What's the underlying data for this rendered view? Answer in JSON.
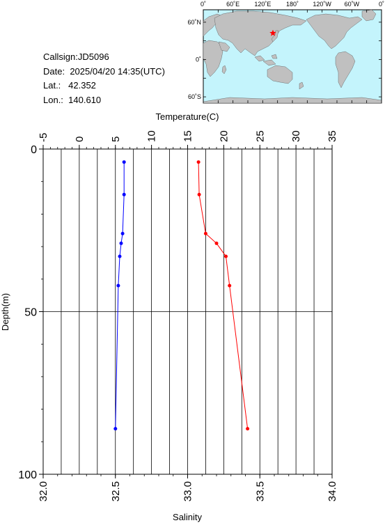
{
  "station": {
    "callsign_label": "Callsign:",
    "callsign": "JD5096",
    "date_label": "Date:",
    "date": "2025/04/20 14:35(UTC)",
    "lat_label": "Lat.:",
    "lat": "42.352",
    "lon_label": "Lon.:",
    "lon": "140.610"
  },
  "map": {
    "top_labels": [
      "0˚",
      "60˚E",
      "120˚E",
      "180˚",
      "120˚W",
      "60˚W",
      "0˚"
    ],
    "left_labels": [
      "60˚N",
      "0˚",
      "60˚S"
    ],
    "ocean_color": "#c4f4fc",
    "land_color": "#c0c0c0",
    "marker_color": "#ff0000",
    "marker": {
      "lon": 140.61,
      "lat": 42.352
    }
  },
  "chart_data": {
    "type": "line",
    "xlabel_top": "Temperature(C)",
    "xlabel_bottom": "Salinity",
    "ylabel": "Depth(m)",
    "temperature_axis": {
      "min": -5,
      "max": 35,
      "ticks": [
        -5,
        0,
        5,
        10,
        15,
        20,
        25,
        30,
        35
      ]
    },
    "salinity_axis": {
      "min": 32.0,
      "max": 34.0,
      "ticks": [
        "32.0",
        "32.5",
        "33.0",
        "33.5",
        "34.0"
      ]
    },
    "depth_axis": {
      "min": 0,
      "max": 100,
      "ticks": [
        0,
        50,
        100
      ],
      "inverted": true
    },
    "series": [
      {
        "color": "#ff0000",
        "axis": "temperature",
        "points": [
          [
            16.5,
            4
          ],
          [
            16.6,
            14
          ],
          [
            17.5,
            26
          ],
          [
            19.0,
            29
          ],
          [
            20.3,
            33
          ],
          [
            20.8,
            42
          ],
          [
            23.3,
            86
          ]
        ]
      },
      {
        "color": "#0000ff",
        "axis": "salinity",
        "points": [
          [
            32.56,
            4
          ],
          [
            32.56,
            14
          ],
          [
            32.55,
            26
          ],
          [
            32.54,
            29
          ],
          [
            32.53,
            33
          ],
          [
            32.52,
            42
          ],
          [
            32.5,
            86
          ]
        ]
      }
    ]
  }
}
